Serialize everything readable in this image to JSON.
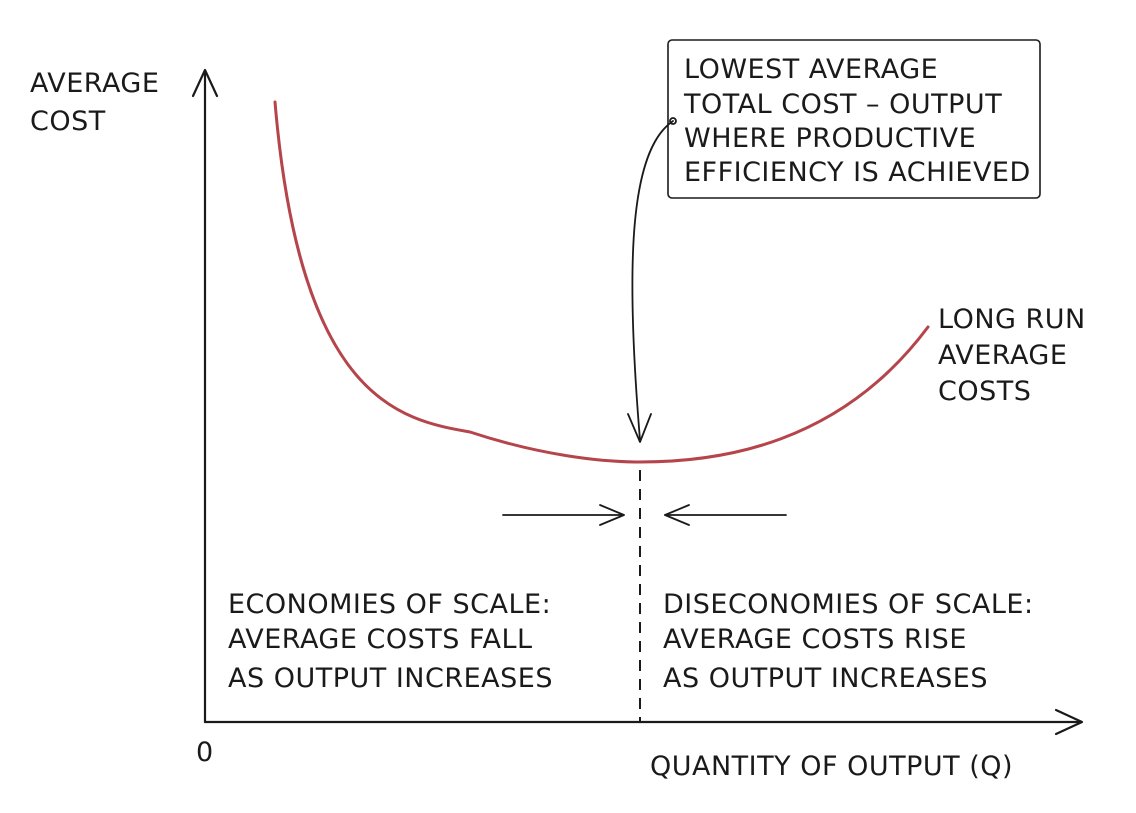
{
  "axes": {
    "y_label": [
      "AVERAGE",
      "COST"
    ],
    "x_label": "QUANTITY OF OUTPUT (Q)",
    "origin": "0"
  },
  "curve": {
    "label": [
      "LONG RUN",
      "AVERAGE",
      "COSTS"
    ],
    "color": "#b5454b"
  },
  "callout": {
    "lines": [
      "LOWEST AVERAGE",
      "TOTAL COST – OUTPUT",
      "WHERE PRODUCTIVE",
      "EFFICIENCY IS ACHIEVED"
    ]
  },
  "regions": {
    "left": [
      "ECONOMIES OF SCALE:",
      "AVERAGE COSTS FALL",
      "AS OUTPUT INCREASES"
    ],
    "right": [
      "DISECONOMIES OF SCALE:",
      "AVERAGE COSTS RISE",
      "AS OUTPUT INCREASES"
    ]
  }
}
